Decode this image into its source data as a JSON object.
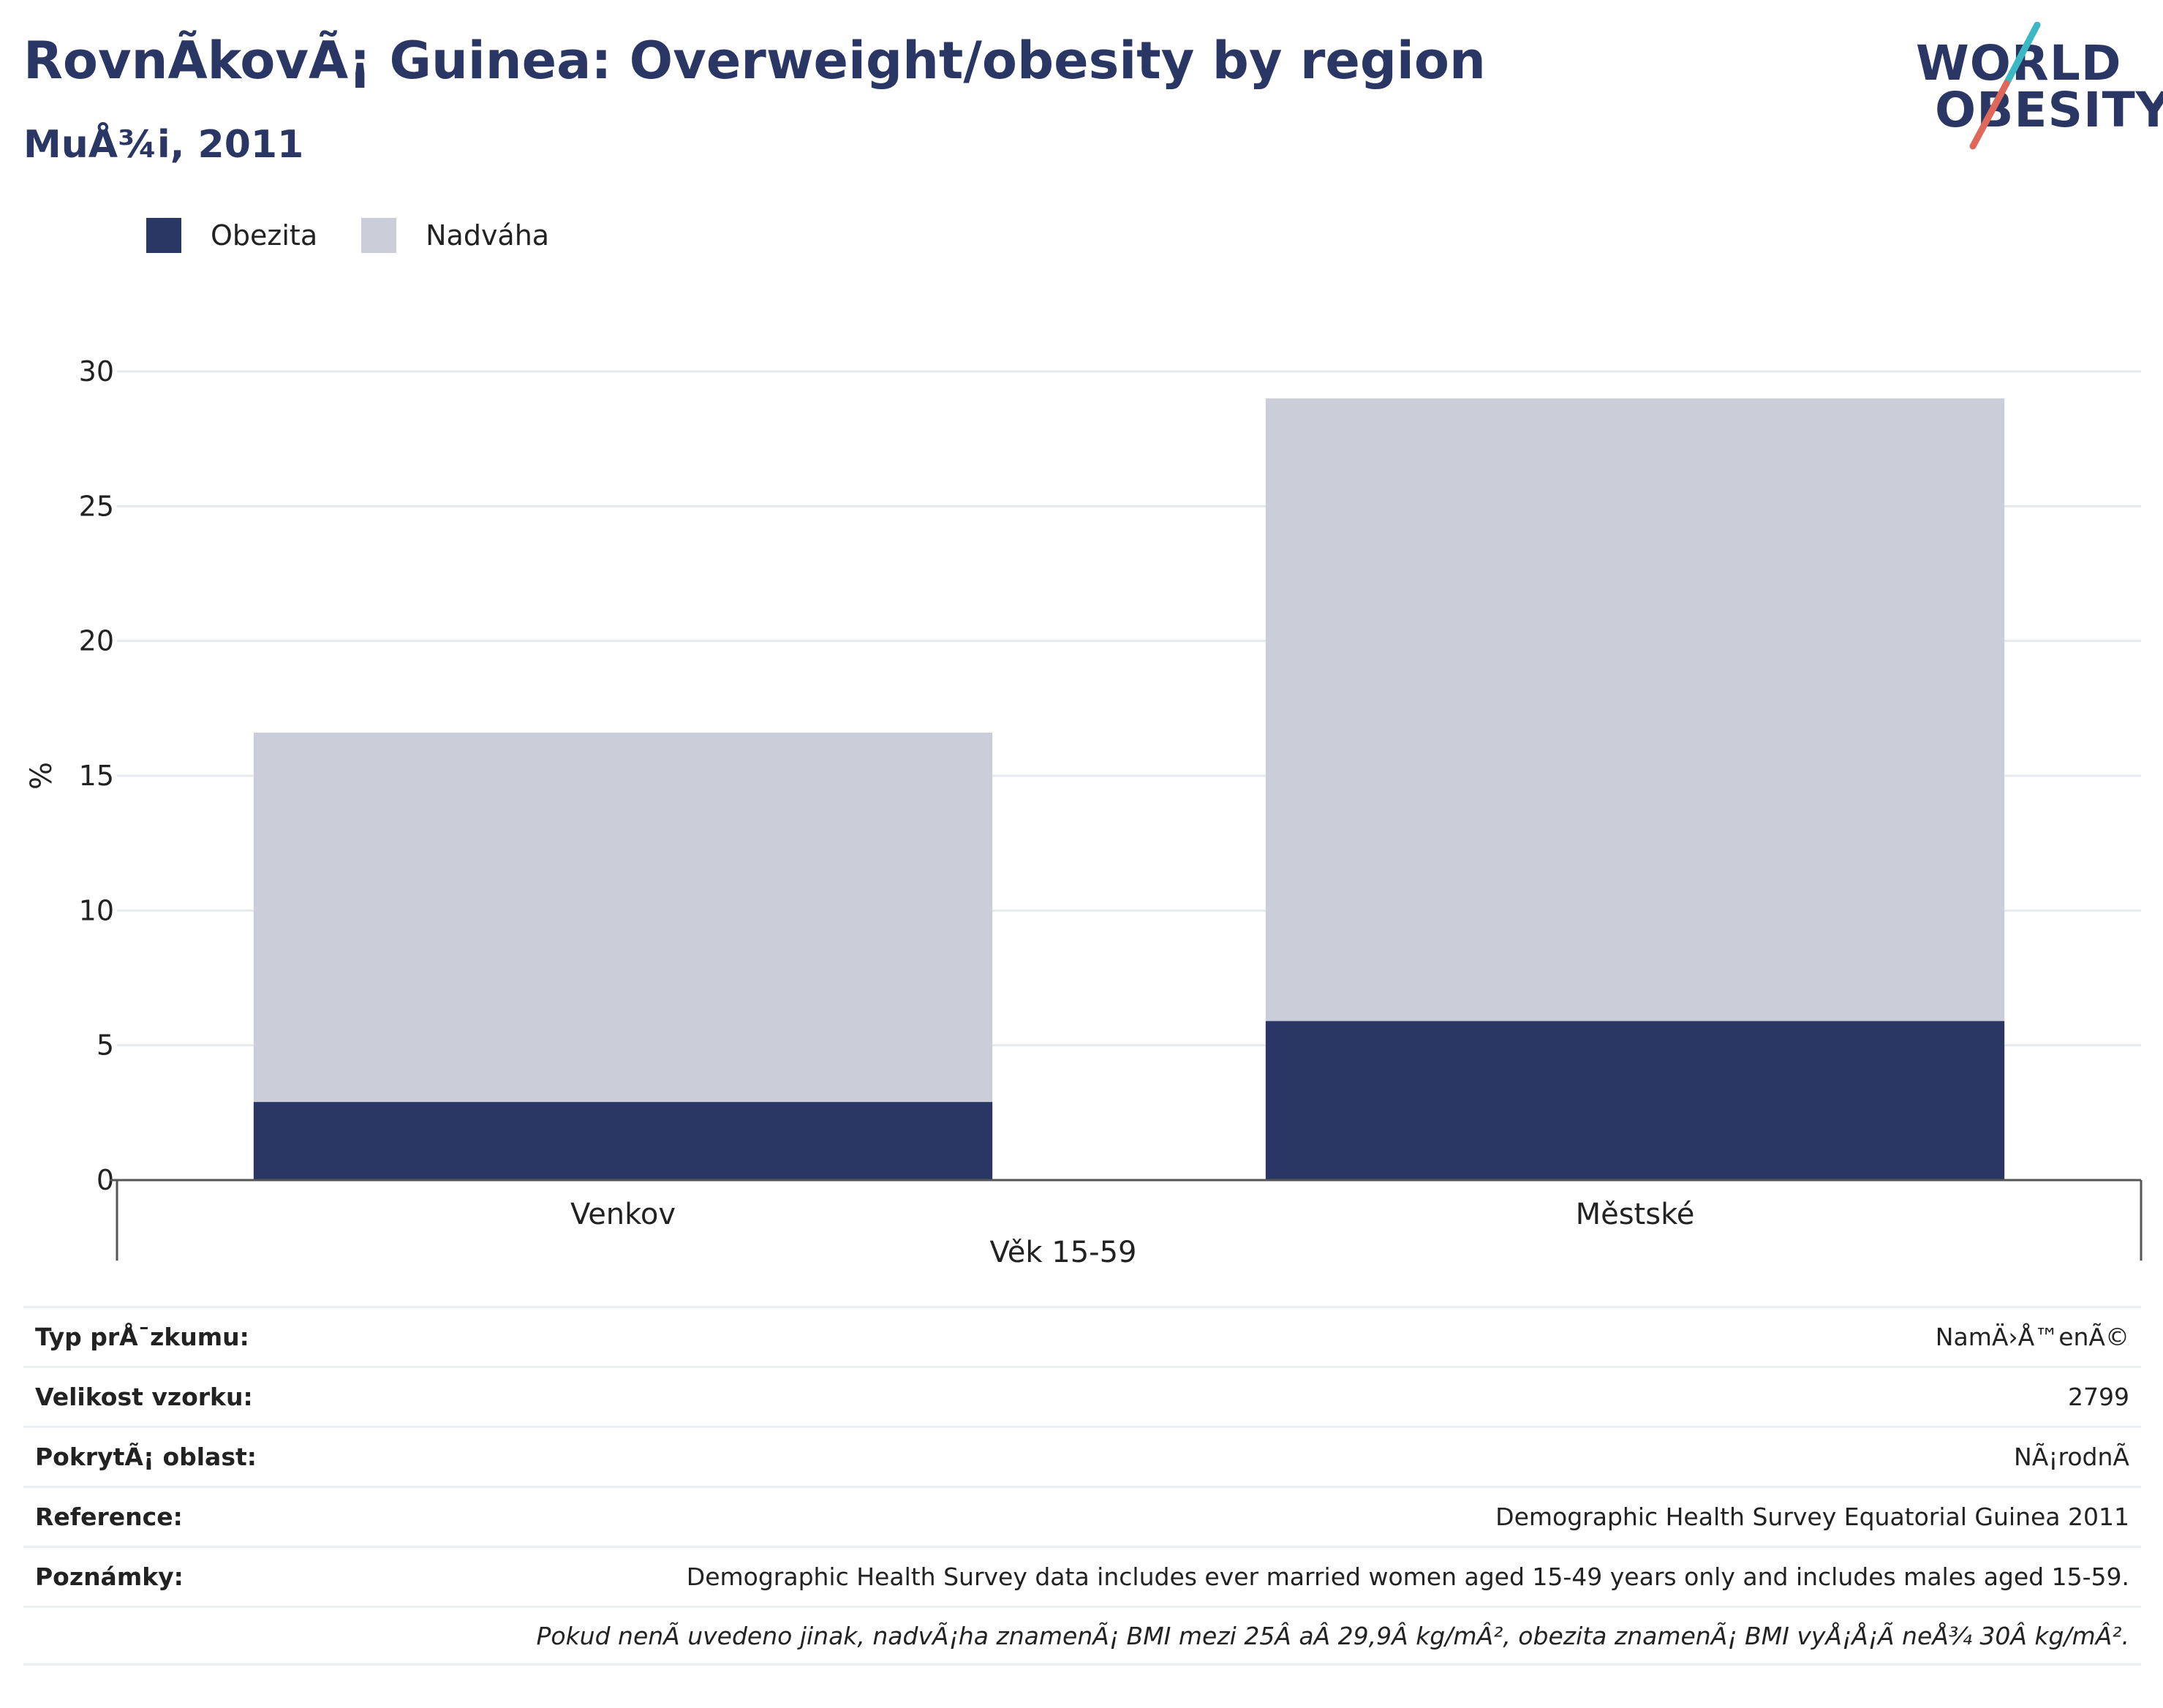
{
  "header": {
    "title": "RovnÃkovÃ¡ Guinea: Overweight/obesity by region",
    "subtitle": "MuÅ¾i, 2011"
  },
  "logo": {
    "line1": "WORLD",
    "line2": "OBESITY"
  },
  "colors": {
    "obesity": "#2a3663",
    "overweight": "#cbcdd9",
    "accent_teal": "#3bb8c4",
    "accent_red": "#e0685a"
  },
  "chart_data": {
    "type": "bar",
    "stacked": true,
    "categories": [
      "Venkov",
      "Městské"
    ],
    "series": [
      {
        "name": "Obezita",
        "values": [
          2.9,
          5.9
        ],
        "color": "#2a3663"
      },
      {
        "name": "Nadváha",
        "values": [
          13.7,
          23.1
        ],
        "color": "#cbcdd9"
      }
    ],
    "xlabel": "Věk 15-59",
    "ylabel": "%",
    "ylim": [
      0,
      30
    ],
    "yticks": [
      0,
      5,
      10,
      15,
      20,
      25,
      30
    ],
    "grid": true,
    "legend": "top-left"
  },
  "meta": [
    {
      "key": "Typ prÅ¯zkumu:",
      "value": "NamÄ›Å™enÃ©"
    },
    {
      "key": "Velikost vzorku:",
      "value": "2799"
    },
    {
      "key": "PokrytÃ¡ oblast:",
      "value": "NÃ¡rodnÃ"
    },
    {
      "key": "Reference:",
      "value": "Demographic Health Survey Equatorial Guinea 2011"
    },
    {
      "key": "Poznámky:",
      "value": "Demographic Health Survey data includes ever married women aged 15-49 years only and includes males aged 15-59."
    },
    {
      "key": "",
      "value": "Pokud nenÃ uvedeno jinak, nadvÃ¡ha znamenÃ¡ BMI mezi 25Â aÂ 29,9Â kg/mÂ², obezita znamenÃ¡ BMI vyÅ¡Å¡Ã neÅ¾ 30Â kg/mÂ²."
    }
  ]
}
